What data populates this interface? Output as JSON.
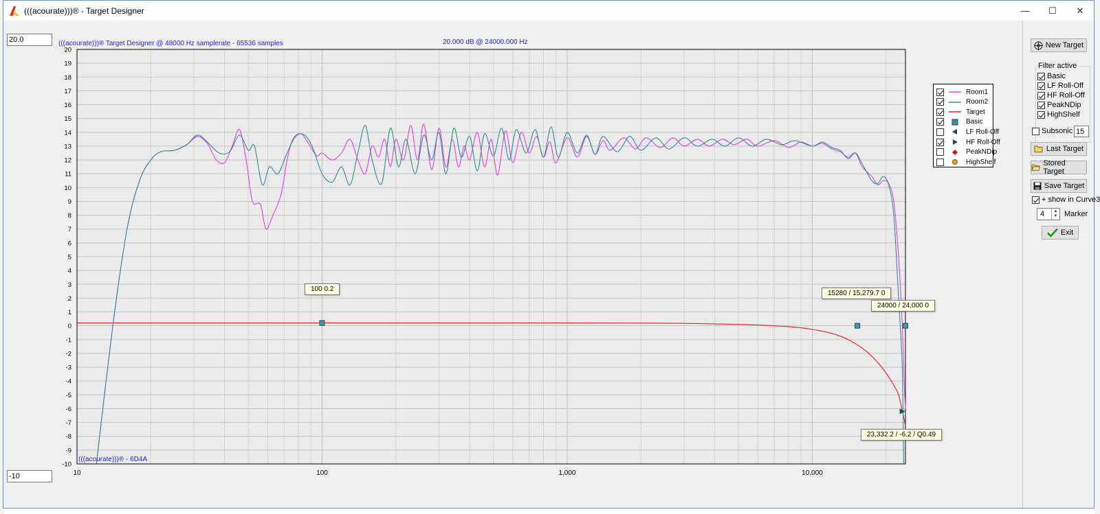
{
  "window": {
    "title": "(((acourate)))® - Target Designer",
    "minimize_symbol": "—",
    "maximize_symbol": "☐",
    "close_symbol": "✕"
  },
  "inputs": {
    "y_max": "20.0",
    "y_min": "-10"
  },
  "plot": {
    "header_left": "(((acourate)))® Target Designer @ 48000 Hz samplerate - 65536 samples",
    "header_center": "20.000 dB @ 24000.000 Hz",
    "footer_left": "(((acourate)))® - 6D4A"
  },
  "tooltips": {
    "marker1": "100 0.2",
    "marker2": "15280 / 15,279.7 0",
    "marker3": "24000 / 24,000 0",
    "marker4": "23,332.2 / -6.2 / Q0.49"
  },
  "legend": {
    "items": [
      {
        "label": "Room1",
        "checked": true,
        "color": "#e040e0",
        "symbol": "line"
      },
      {
        "label": "Room2",
        "checked": true,
        "color": "#2f8f8f",
        "symbol": "line"
      },
      {
        "label": "Target",
        "checked": true,
        "color": "#e02020",
        "symbol": "line"
      },
      {
        "label": "Basic",
        "checked": true,
        "color": "#3c8c9c",
        "symbol": "square"
      },
      {
        "label": "LF Roll-Off",
        "checked": false,
        "color": "#1e3c64",
        "symbol": "tri-left"
      },
      {
        "label": "HF Roll-Off",
        "checked": true,
        "color": "#1e5050",
        "symbol": "tri-right"
      },
      {
        "label": "PeakNDip",
        "checked": false,
        "color": "#c01818",
        "symbol": "diamond"
      },
      {
        "label": "HighShelf",
        "checked": false,
        "color": "#e8a020",
        "symbol": "circle"
      }
    ]
  },
  "sidepanel": {
    "new_target": "New Target",
    "filter_active_title": "Filter active",
    "filters": [
      {
        "label": "Basic",
        "checked": true
      },
      {
        "label": "LF Roll-Off",
        "checked": true
      },
      {
        "label": "HF Roll-Off",
        "checked": true
      },
      {
        "label": "PeakNDip",
        "checked": true
      },
      {
        "label": "HighShelf",
        "checked": true
      }
    ],
    "subsonic_label": "Subsonic",
    "subsonic_checked": false,
    "subsonic_value": "15",
    "last_target": "Last Target",
    "stored_target": "Stored Target",
    "save_target": "Save Target",
    "show_in_curve3": "+ show in Curve3",
    "show_in_curve3_checked": true,
    "marker_value": "4",
    "marker_label": "Marker",
    "exit": "Exit"
  },
  "chart_data": {
    "type": "line",
    "xscale": "log",
    "xlim": [
      10,
      24000
    ],
    "ylim": [
      -10,
      20
    ],
    "x_tick_labels": [
      "10",
      "100",
      "1,000",
      "10,000"
    ],
    "y_ticks": [
      20,
      19,
      18,
      17,
      16,
      15,
      14,
      13,
      12,
      11,
      10,
      9,
      8,
      7,
      6,
      5,
      4,
      3,
      2,
      1,
      0,
      -1,
      -2,
      -3,
      -4,
      -5,
      -6,
      -7,
      -8,
      -9,
      -10
    ],
    "grid": true,
    "series": [
      {
        "name": "Room1",
        "color": "#e040e0",
        "points": [
          [
            12,
            -10
          ],
          [
            14,
            0
          ],
          [
            16,
            7
          ],
          [
            18,
            10.5
          ],
          [
            20,
            12
          ],
          [
            22,
            12.6
          ],
          [
            25,
            12.7
          ],
          [
            28,
            13.1
          ],
          [
            31,
            13.7
          ],
          [
            34,
            13.2
          ],
          [
            37,
            12
          ],
          [
            40,
            11.8
          ],
          [
            43,
            13
          ],
          [
            46,
            14.2
          ],
          [
            49,
            12
          ],
          [
            52,
            9
          ],
          [
            56,
            8.8
          ],
          [
            59,
            7
          ],
          [
            63,
            8
          ],
          [
            68,
            9.5
          ],
          [
            72,
            12
          ],
          [
            76,
            13.5
          ],
          [
            82,
            13.9
          ],
          [
            88,
            13.2
          ],
          [
            95,
            12.3
          ],
          [
            100,
            12.5
          ],
          [
            110,
            12
          ],
          [
            120,
            12.5
          ],
          [
            130,
            13.5
          ],
          [
            140,
            12
          ],
          [
            150,
            11
          ],
          [
            160,
            13
          ],
          [
            170,
            12.2
          ],
          [
            180,
            13.5
          ],
          [
            190,
            11.5
          ],
          [
            200,
            13.5
          ],
          [
            215,
            12
          ],
          [
            230,
            14.5
          ],
          [
            245,
            12
          ],
          [
            260,
            14.6
          ],
          [
            280,
            11.3
          ],
          [
            300,
            14.3
          ],
          [
            320,
            11.5
          ],
          [
            340,
            13.5
          ],
          [
            360,
            11.5
          ],
          [
            380,
            13
          ],
          [
            400,
            12
          ],
          [
            430,
            14
          ],
          [
            460,
            11.5
          ],
          [
            490,
            13.5
          ],
          [
            520,
            10.9
          ],
          [
            560,
            14.1
          ],
          [
            600,
            11.8
          ],
          [
            650,
            14
          ],
          [
            700,
            12.5
          ],
          [
            750,
            13.7
          ],
          [
            800,
            12.2
          ],
          [
            850,
            13.3
          ],
          [
            900,
            11.8
          ],
          [
            1000,
            13.6
          ],
          [
            1100,
            12.2
          ],
          [
            1200,
            13.7
          ],
          [
            1300,
            12.4
          ],
          [
            1400,
            13.4
          ],
          [
            1500,
            12.7
          ],
          [
            1700,
            13.6
          ],
          [
            1900,
            12.8
          ],
          [
            2100,
            13.6
          ],
          [
            2400,
            12.9
          ],
          [
            2700,
            13.6
          ],
          [
            3000,
            13
          ],
          [
            3400,
            13.5
          ],
          [
            3800,
            13
          ],
          [
            4300,
            13.5
          ],
          [
            4800,
            13.1
          ],
          [
            5400,
            13.5
          ],
          [
            6000,
            13
          ],
          [
            7000,
            13.4
          ],
          [
            8000,
            12.9
          ],
          [
            9000,
            13.3
          ],
          [
            10000,
            13
          ],
          [
            11000,
            13.2
          ],
          [
            12000,
            12.8
          ],
          [
            13000,
            12.6
          ],
          [
            14000,
            12.2
          ],
          [
            15000,
            12.5
          ],
          [
            16000,
            11.5
          ],
          [
            17500,
            10.8
          ],
          [
            18500,
            10.2
          ],
          [
            19500,
            10.5
          ],
          [
            20500,
            10.3
          ],
          [
            21500,
            9
          ],
          [
            22500,
            5
          ],
          [
            23300,
            0
          ],
          [
            23700,
            -4
          ],
          [
            24000,
            -6
          ]
        ]
      },
      {
        "name": "Room2",
        "color": "#2f8f8f",
        "points": [
          [
            12,
            -10
          ],
          [
            14,
            0
          ],
          [
            16,
            7
          ],
          [
            18,
            10.5
          ],
          [
            20,
            12
          ],
          [
            22,
            12.6
          ],
          [
            25,
            12.7
          ],
          [
            28,
            13.1
          ],
          [
            31,
            13.8
          ],
          [
            34,
            13.3
          ],
          [
            38,
            12.5
          ],
          [
            42,
            12.6
          ],
          [
            46,
            13.8
          ],
          [
            50,
            12.7
          ],
          [
            53,
            13
          ],
          [
            57,
            10.2
          ],
          [
            61,
            11.5
          ],
          [
            66,
            11
          ],
          [
            72,
            12.5
          ],
          [
            78,
            13.7
          ],
          [
            85,
            13.8
          ],
          [
            92,
            12.8
          ],
          [
            100,
            11
          ],
          [
            110,
            10.4
          ],
          [
            120,
            11.5
          ],
          [
            130,
            10.2
          ],
          [
            140,
            12.5
          ],
          [
            150,
            14.5
          ],
          [
            160,
            12
          ],
          [
            175,
            10.3
          ],
          [
            190,
            14.3
          ],
          [
            205,
            11.5
          ],
          [
            220,
            13.5
          ],
          [
            240,
            11
          ],
          [
            260,
            13.8
          ],
          [
            280,
            12
          ],
          [
            300,
            14
          ],
          [
            320,
            11
          ],
          [
            345,
            14.3
          ],
          [
            370,
            12.2
          ],
          [
            400,
            13.7
          ],
          [
            430,
            11.2
          ],
          [
            460,
            13.9
          ],
          [
            500,
            12.3
          ],
          [
            540,
            14.3
          ],
          [
            580,
            12
          ],
          [
            620,
            14.2
          ],
          [
            680,
            12.5
          ],
          [
            740,
            14.2
          ],
          [
            800,
            12.2
          ],
          [
            860,
            14.4
          ],
          [
            920,
            12.2
          ],
          [
            1000,
            14
          ],
          [
            1100,
            12.5
          ],
          [
            1200,
            13.8
          ],
          [
            1300,
            12.4
          ],
          [
            1400,
            13.7
          ],
          [
            1600,
            12.6
          ],
          [
            1800,
            13.7
          ],
          [
            2000,
            12.7
          ],
          [
            2300,
            13.6
          ],
          [
            2600,
            12.8
          ],
          [
            3000,
            13.6
          ],
          [
            3400,
            13
          ],
          [
            3900,
            13.5
          ],
          [
            4400,
            13
          ],
          [
            5000,
            13.6
          ],
          [
            5700,
            13
          ],
          [
            6500,
            13.5
          ],
          [
            7500,
            13.1
          ],
          [
            8500,
            13.4
          ],
          [
            10000,
            13
          ],
          [
            11000,
            13.3
          ],
          [
            12000,
            12.9
          ],
          [
            13000,
            12.7
          ],
          [
            14000,
            12.1
          ],
          [
            15000,
            12.5
          ],
          [
            16000,
            11.7
          ],
          [
            17500,
            10.5
          ],
          [
            18500,
            10.3
          ],
          [
            19500,
            10.8
          ],
          [
            20500,
            10.2
          ],
          [
            21500,
            8
          ],
          [
            22500,
            2
          ],
          [
            23300,
            -3
          ],
          [
            23600,
            -10
          ]
        ]
      },
      {
        "name": "Target",
        "color": "#e02020",
        "points": [
          [
            10,
            0.2
          ],
          [
            100,
            0.2
          ],
          [
            1000,
            0.2
          ],
          [
            2000,
            0.19
          ],
          [
            3000,
            0.17
          ],
          [
            5000,
            0.1
          ],
          [
            7000,
            0
          ],
          [
            9000,
            -0.15
          ],
          [
            11000,
            -0.4
          ],
          [
            13000,
            -0.75
          ],
          [
            15000,
            -1.3
          ],
          [
            17000,
            -2
          ],
          [
            19000,
            -2.9
          ],
          [
            20500,
            -3.7
          ],
          [
            21500,
            -4.3
          ],
          [
            22500,
            -5
          ],
          [
            23332,
            -6.2
          ],
          [
            24000,
            -7.2
          ]
        ]
      }
    ],
    "markers": [
      {
        "name": "Basic",
        "x": 100,
        "y": 0.2
      },
      {
        "name": "Basic",
        "x": 15280,
        "y": 0
      },
      {
        "name": "Basic",
        "x": 24000,
        "y": 0
      },
      {
        "name": "HF Roll-Off",
        "x": 23332.2,
        "y": -6.2
      }
    ]
  }
}
